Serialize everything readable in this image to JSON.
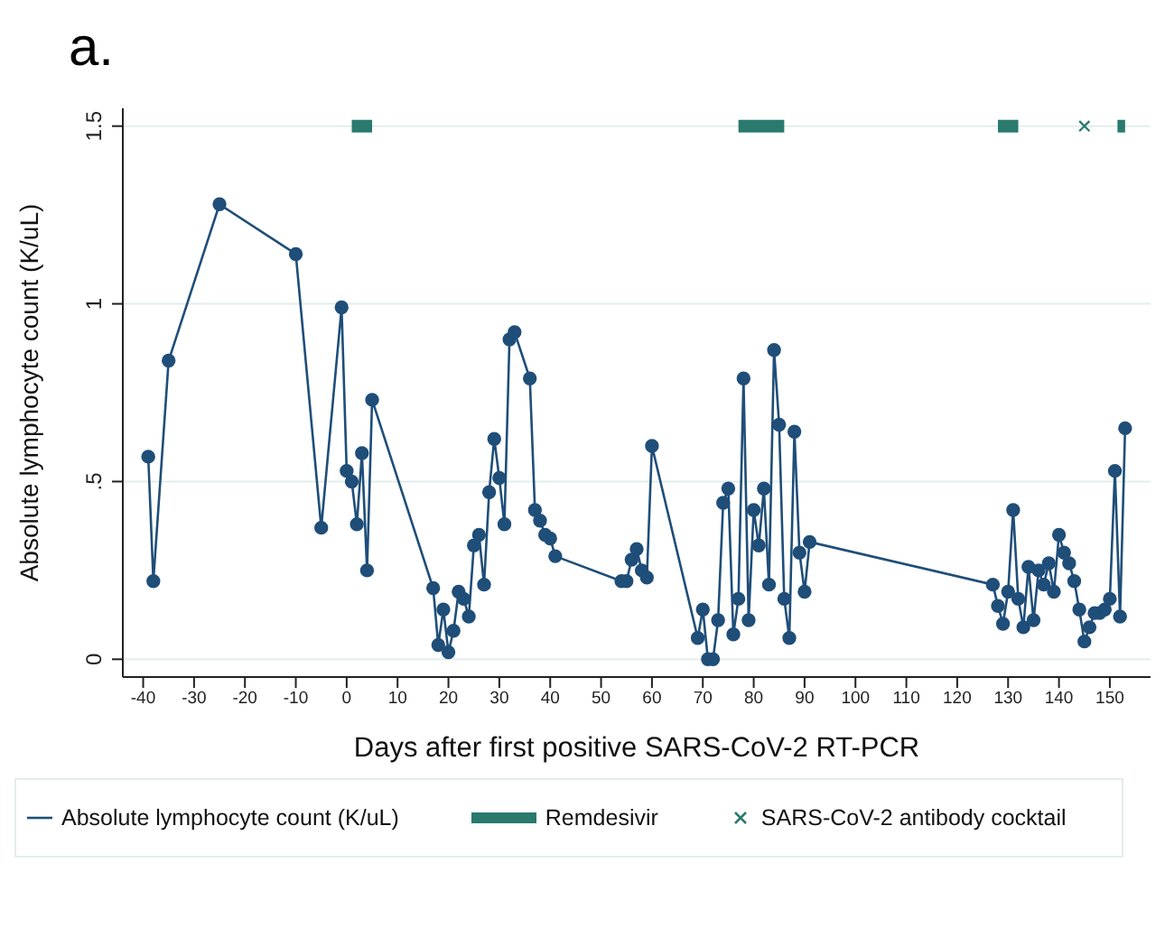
{
  "chart_data": {
    "type": "line",
    "title": "a.",
    "xlabel": "Days after first positive SARS-CoV-2 RT-PCR",
    "ylabel": "Absolute lymphocyte count (K/uL)",
    "xlim": [
      -44,
      158
    ],
    "xticks": [
      -40,
      -30,
      -20,
      -10,
      0,
      10,
      20,
      30,
      40,
      50,
      60,
      70,
      80,
      90,
      100,
      110,
      120,
      130,
      140,
      150
    ],
    "ylim": [
      -0.05,
      1.55
    ],
    "yticks": [
      0,
      {
        "value": 0.5,
        "label": ".5"
      },
      1,
      1.5
    ],
    "grid": "y",
    "legend": "bottom",
    "line_style": "solid",
    "series": [
      {
        "name": "Absolute lymphocyte count (K/uL)",
        "marker": "circle",
        "color": "#1f4e79",
        "x": [
          -39,
          -38,
          -35,
          -25,
          -10,
          -5,
          -1,
          0,
          1,
          2,
          3,
          4,
          5,
          17,
          18,
          19,
          20,
          21,
          22,
          23,
          24,
          25,
          26,
          27,
          28,
          29,
          30,
          31,
          32,
          33,
          36,
          37,
          38,
          39,
          40,
          41,
          54,
          55,
          56,
          57,
          58,
          59,
          60,
          69,
          70,
          71,
          72,
          73,
          74,
          75,
          76,
          77,
          78,
          79,
          80,
          81,
          82,
          83,
          84,
          85,
          86,
          87,
          88,
          89,
          90,
          91,
          127,
          128,
          129,
          130,
          131,
          132,
          133,
          134,
          135,
          136,
          137,
          138,
          139,
          140,
          141,
          142,
          143,
          144,
          145,
          146,
          147,
          148,
          149,
          150,
          151,
          152,
          153
        ],
        "values": [
          0.57,
          0.22,
          0.84,
          1.28,
          1.14,
          0.37,
          0.99,
          0.53,
          0.5,
          0.38,
          0.58,
          0.25,
          0.73,
          0.2,
          0.04,
          0.14,
          0.02,
          0.08,
          0.19,
          0.17,
          0.12,
          0.32,
          0.35,
          0.21,
          0.47,
          0.62,
          0.51,
          0.38,
          0.9,
          0.92,
          0.79,
          0.42,
          0.39,
          0.35,
          0.34,
          0.29,
          0.22,
          0.22,
          0.28,
          0.31,
          0.25,
          0.23,
          0.6,
          0.06,
          0.14,
          0,
          0,
          0.11,
          0.44,
          0.48,
          0.07,
          0.17,
          0.79,
          0.11,
          0.42,
          0.32,
          0.48,
          0.21,
          0.87,
          0.66,
          0.17,
          0.06,
          0.64,
          0.3,
          0.19,
          0.33,
          0.21,
          0.15,
          0.1,
          0.19,
          0.42,
          0.17,
          0.09,
          0.26,
          0.11,
          0.25,
          0.21,
          0.27,
          0.19,
          0.35,
          0.3,
          0.27,
          0.22,
          0.14,
          0.05,
          0.09,
          0.13,
          0.13,
          0.14,
          0.17,
          0.53,
          0.12,
          0.65
        ]
      },
      {
        "name": "Remdesivir",
        "type": "line",
        "marker": "none",
        "color": "#2a7a6e",
        "x": [
          1,
          5,
          6,
          77,
          86,
          87,
          128,
          132,
          133,
          151.5,
          153
        ],
        "values": [
          1.5,
          1.5,
          null,
          1.5,
          1.5,
          null,
          1.5,
          1.5,
          null,
          1.5,
          1.5
        ]
      },
      {
        "name": "SARS-CoV-2 antibody cocktail",
        "type": "scatter",
        "marker": "cross",
        "color": "#2a7a6e",
        "x": [
          145
        ],
        "values": [
          1.5
        ]
      }
    ]
  }
}
